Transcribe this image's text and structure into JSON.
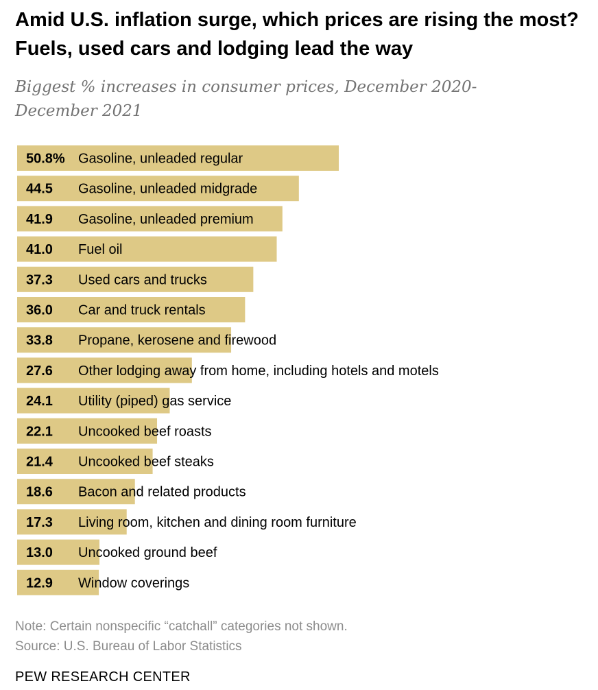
{
  "title": "Amid U.S. inflation surge, which prices are rising the most? Fuels, used cars and lodging lead the way",
  "subtitle": "Biggest % increases in consumer prices, December 2020-December 2021",
  "note": "Note: Certain nonspecific “catchall” categories not shown.",
  "source": "Source: U.S. Bureau of Labor Statistics",
  "brand": "PEW RESEARCH CENTER",
  "colors": {
    "bar": "#dec986"
  },
  "chart_data": {
    "type": "bar",
    "orientation": "horizontal",
    "unit_suffix_first": "%",
    "categories": [
      "Gasoline, unleaded regular",
      "Gasoline, unleaded midgrade",
      "Gasoline, unleaded premium",
      "Fuel oil",
      "Used cars and trucks",
      "Car and truck rentals",
      "Propane, kerosene and firewood",
      "Other lodging away from home, including hotels and motels",
      "Utility (piped) gas service",
      "Uncooked beef roasts",
      "Uncooked beef steaks",
      "Bacon and related products",
      "Living room, kitchen and dining room furniture",
      "Uncooked ground beef",
      "Window coverings"
    ],
    "values": [
      50.8,
      44.5,
      41.9,
      41.0,
      37.3,
      36.0,
      33.8,
      27.6,
      24.1,
      22.1,
      21.4,
      18.6,
      17.3,
      13.0,
      12.9
    ],
    "value_labels": [
      "50.8%",
      "44.5",
      "41.9",
      "41.0",
      "37.3",
      "36.0",
      "33.8",
      "27.6",
      "24.1",
      "22.1",
      "21.4",
      "18.6",
      "17.3",
      "13.0",
      "12.9"
    ],
    "xlim": [
      0,
      50.8
    ],
    "grid": false,
    "legend": "none"
  }
}
